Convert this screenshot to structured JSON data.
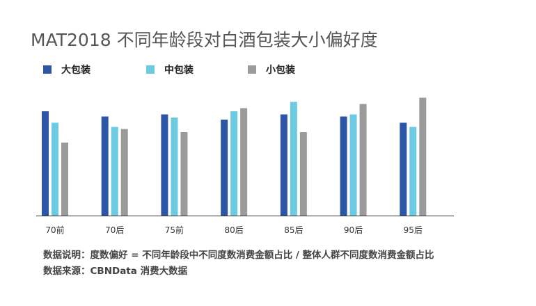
{
  "chart_data": {
    "type": "bar",
    "title": "MAT2018 不同年龄段对白酒包装大小偏好度",
    "categories": [
      "70前",
      "70后",
      "75前",
      "80后",
      "85后",
      "90后",
      "95后"
    ],
    "series": [
      {
        "name": "大包装",
        "color": "#2e56a6",
        "values": [
          1.0,
          0.95,
          0.97,
          0.92,
          0.97,
          0.95,
          0.89
        ]
      },
      {
        "name": "中包装",
        "color": "#6ccbe0",
        "values": [
          0.89,
          0.85,
          0.94,
          1.0,
          1.09,
          0.97,
          0.85
        ]
      },
      {
        "name": "小包装",
        "color": "#9b9b9b",
        "values": [
          0.7,
          0.83,
          0.8,
          1.03,
          0.8,
          1.07,
          1.13
        ]
      }
    ],
    "ylim": [
      0,
      1.2
    ],
    "grid": false,
    "legend_position": "top-left"
  },
  "notes": {
    "definition": "数据说明：度数偏好 = 不同年龄段中不同度数消费金额占比 / 整体人群不同度数消费金额占比",
    "source": "数据来源：CBNData 消费大数据"
  }
}
